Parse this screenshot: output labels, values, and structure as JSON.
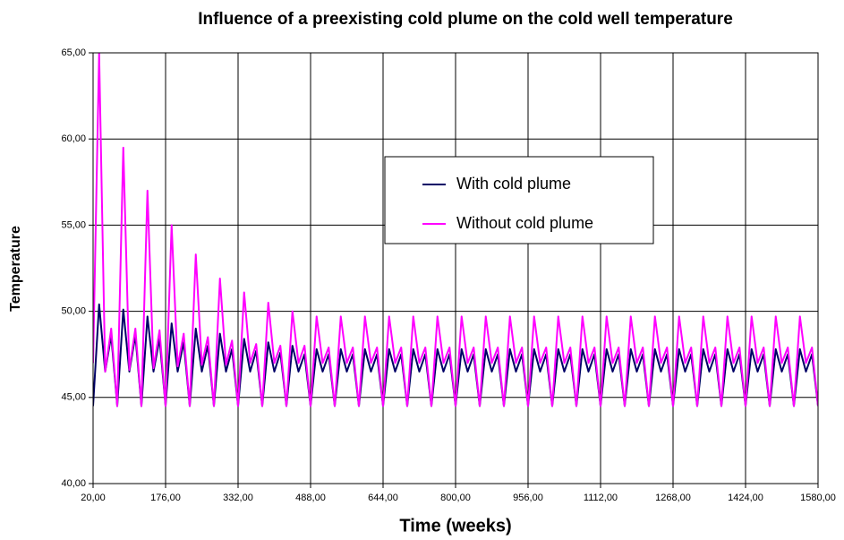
{
  "chart_data": {
    "type": "line",
    "title": "Influence of a preexisting cold plume on the cold well temperature",
    "x_label": "Time (weeks)",
    "y_label": "Temperature",
    "x": [
      20,
      33,
      46,
      59,
      72,
      85,
      98,
      111,
      124,
      137,
      150,
      163,
      176,
      189,
      202,
      215,
      228,
      241,
      254,
      267,
      280,
      293,
      306,
      319,
      332,
      345,
      358,
      371,
      384,
      397,
      410,
      423,
      436,
      449,
      462,
      475,
      488,
      501,
      514,
      527,
      540,
      553,
      566,
      579,
      592,
      605,
      618,
      631,
      644,
      657,
      670,
      683,
      696,
      709,
      722,
      735,
      748,
      761,
      774,
      787,
      800,
      813,
      826,
      839,
      852,
      865,
      878,
      891,
      904,
      917,
      930,
      943,
      956,
      969,
      982,
      995,
      1008,
      1021,
      1034,
      1047,
      1060,
      1073,
      1086,
      1099,
      1112,
      1125,
      1138,
      1151,
      1164,
      1177,
      1190,
      1203,
      1216,
      1229,
      1242,
      1255,
      1268,
      1281,
      1294,
      1307,
      1320,
      1333,
      1346,
      1359,
      1372,
      1385,
      1398,
      1411,
      1424,
      1437,
      1450,
      1463,
      1476,
      1489,
      1502,
      1515,
      1528,
      1541,
      1554,
      1567,
      1580
    ],
    "series": [
      {
        "name": "With cold plume",
        "color": "#000066",
        "values": [
          44.5,
          50.4,
          46.5,
          48.6,
          44.5,
          50.1,
          46.5,
          48.6,
          44.5,
          49.7,
          46.5,
          48.4,
          44.5,
          49.3,
          46.5,
          48.2,
          44.5,
          49.0,
          46.5,
          48.0,
          44.5,
          48.7,
          46.5,
          47.8,
          44.5,
          48.4,
          46.5,
          47.7,
          44.5,
          48.2,
          46.5,
          47.6,
          44.5,
          48.0,
          46.5,
          47.5,
          44.5,
          47.8,
          46.5,
          47.5,
          44.5,
          47.8,
          46.5,
          47.5,
          44.5,
          47.8,
          46.5,
          47.5,
          44.5,
          47.8,
          46.5,
          47.5,
          44.5,
          47.8,
          46.5,
          47.5,
          44.5,
          47.8,
          46.5,
          47.5,
          44.5,
          47.8,
          46.5,
          47.5,
          44.5,
          47.8,
          46.5,
          47.5,
          44.5,
          47.8,
          46.5,
          47.5,
          44.5,
          47.8,
          46.5,
          47.5,
          44.5,
          47.8,
          46.5,
          47.5,
          44.5,
          47.8,
          46.5,
          47.5,
          44.5,
          47.8,
          46.5,
          47.5,
          44.5,
          47.8,
          46.5,
          47.5,
          44.5,
          47.8,
          46.5,
          47.5,
          44.5,
          47.8,
          46.5,
          47.5,
          44.5,
          47.8,
          46.5,
          47.5,
          44.5,
          47.8,
          46.5,
          47.5,
          44.5,
          47.8,
          46.5,
          47.5,
          44.5,
          47.8,
          46.5,
          47.5,
          44.5,
          47.8,
          46.5,
          47.5,
          44.5
        ]
      },
      {
        "name": "Without cold plume",
        "color": "#ff00ff",
        "values": [
          47,
          65,
          46.5,
          49.0,
          44.5,
          59.5,
          46.6,
          49.0,
          44.5,
          57,
          46.7,
          48.9,
          44.5,
          55,
          46.8,
          48.7,
          44.5,
          53.3,
          46.9,
          48.5,
          44.5,
          51.9,
          46.9,
          48.3,
          44.5,
          51.1,
          47,
          48.1,
          44.5,
          50.5,
          47,
          48.0,
          44.5,
          50.0,
          47,
          48.0,
          44.5,
          49.7,
          47,
          47.9,
          44.5,
          49.7,
          47,
          47.9,
          44.5,
          49.7,
          47,
          47.9,
          44.5,
          49.7,
          47,
          47.9,
          44.5,
          49.7,
          47,
          47.9,
          44.5,
          49.7,
          47,
          47.9,
          44.5,
          49.7,
          47,
          47.9,
          44.5,
          49.7,
          47,
          47.9,
          44.5,
          49.7,
          47,
          47.9,
          44.5,
          49.7,
          47,
          47.9,
          44.5,
          49.7,
          47,
          47.9,
          44.5,
          49.7,
          47,
          47.9,
          44.5,
          49.7,
          47,
          47.9,
          44.5,
          49.7,
          47,
          47.9,
          44.5,
          49.7,
          47,
          47.9,
          44.5,
          49.7,
          47,
          47.9,
          44.5,
          49.7,
          47,
          47.9,
          44.5,
          49.7,
          47,
          47.9,
          44.5,
          49.7,
          47,
          47.9,
          44.5,
          49.7,
          47,
          47.9,
          44.5,
          49.7,
          47,
          47.9,
          44.5
        ]
      }
    ],
    "xlim": [
      20,
      1580
    ],
    "xticks": [
      {
        "value": 20,
        "label": "20,00"
      },
      {
        "value": 176,
        "label": "176,00"
      },
      {
        "value": 332,
        "label": "332,00"
      },
      {
        "value": 488,
        "label": "488,00"
      },
      {
        "value": 644,
        "label": "644,00"
      },
      {
        "value": 800,
        "label": "800,00"
      },
      {
        "value": 956,
        "label": "956,00"
      },
      {
        "value": 1112,
        "label": "1112,00"
      },
      {
        "value": 1268,
        "label": "1268,00"
      },
      {
        "value": 1424,
        "label": "1424,00"
      },
      {
        "value": 1580,
        "label": "1580,00"
      }
    ],
    "ylim": [
      40,
      65
    ],
    "yticks": [
      {
        "value": 40,
        "label": "40,00"
      },
      {
        "value": 45,
        "label": "45,00"
      },
      {
        "value": 50,
        "label": "50,00"
      },
      {
        "value": 55,
        "label": "55,00"
      },
      {
        "value": 60,
        "label": "60,00"
      },
      {
        "value": 65,
        "label": "65,00"
      }
    ],
    "grid": true
  }
}
